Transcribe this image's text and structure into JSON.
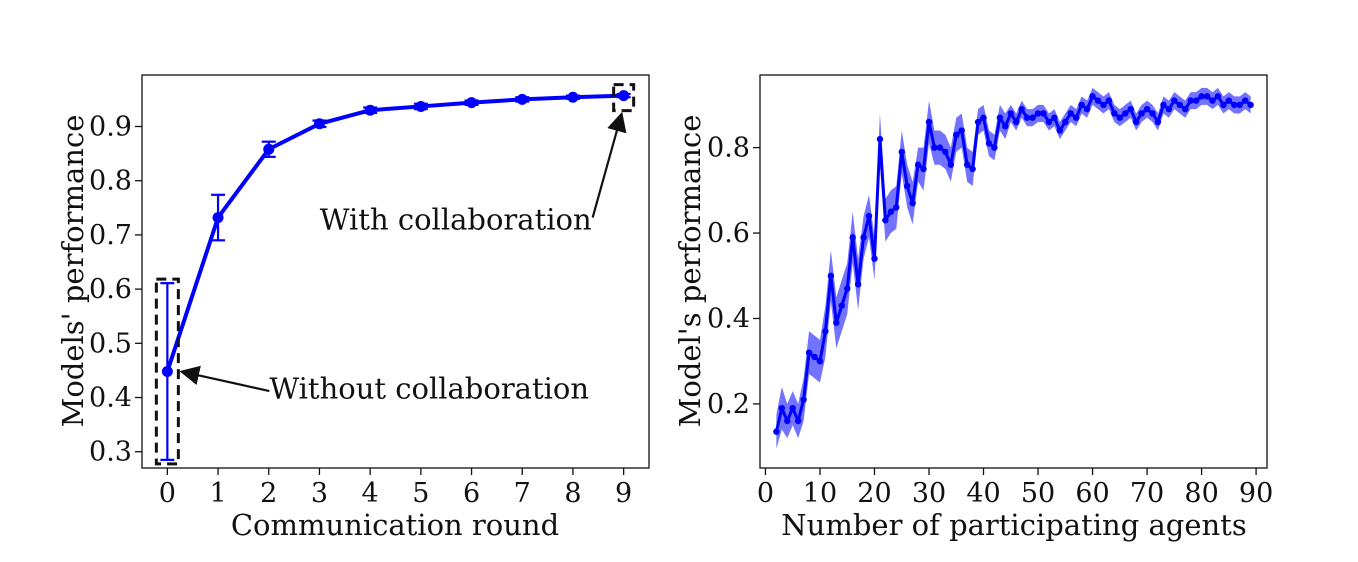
{
  "chart_data": [
    {
      "type": "line",
      "xlabel": "Communication round",
      "ylabel": "Models' performance",
      "xlim": [
        -0.5,
        9.5
      ],
      "ylim": [
        0.27,
        0.995
      ],
      "xticks": [
        0,
        1,
        2,
        3,
        4,
        5,
        6,
        7,
        8,
        9
      ],
      "yticks": [
        0.3,
        0.4,
        0.5,
        0.6,
        0.7,
        0.8,
        0.9
      ],
      "grid": false,
      "color": "#0000ff",
      "series": [
        {
          "x": [
            0,
            1,
            2,
            3,
            4,
            5,
            6,
            7,
            8,
            9
          ],
          "y": [
            0.448,
            0.732,
            0.858,
            0.905,
            0.93,
            0.937,
            0.944,
            0.95,
            0.954,
            0.957
          ],
          "err": [
            0.163,
            0.042,
            0.014,
            0.006,
            0.005,
            0.005,
            0.004,
            0.004,
            0.003,
            0.003
          ]
        }
      ],
      "annotations": [
        {
          "text": "Without collaboration",
          "target_x": 0,
          "target_y": 0.448
        },
        {
          "text": "With collaboration",
          "target_x": 9,
          "target_y": 0.957
        }
      ]
    },
    {
      "type": "line",
      "xlabel": "Number of participating agents",
      "ylabel": "Model's performance",
      "xlim": [
        -1,
        92
      ],
      "ylim": [
        0.05,
        0.97
      ],
      "xticks": [
        0,
        10,
        20,
        30,
        40,
        50,
        60,
        70,
        80,
        90
      ],
      "yticks": [
        0.2,
        0.4,
        0.6,
        0.8
      ],
      "grid": false,
      "color": "#0000ff",
      "series": [
        {
          "x": [
            2,
            3,
            4,
            5,
            6,
            7,
            8,
            9,
            10,
            11,
            12,
            13,
            14,
            15,
            16,
            17,
            18,
            19,
            20,
            21,
            22,
            23,
            24,
            25,
            26,
            27,
            28,
            29,
            30,
            31,
            32,
            33,
            34,
            35,
            36,
            37,
            38,
            39,
            40,
            41,
            42,
            43,
            44,
            45,
            46,
            47,
            48,
            49,
            50,
            51,
            52,
            53,
            54,
            55,
            56,
            57,
            58,
            59,
            60,
            61,
            62,
            63,
            64,
            65,
            66,
            67,
            68,
            69,
            70,
            71,
            72,
            73,
            74,
            75,
            76,
            77,
            78,
            79,
            80,
            81,
            82,
            83,
            84,
            85,
            86,
            87,
            88,
            89
          ],
          "y": [
            0.135,
            0.19,
            0.16,
            0.19,
            0.16,
            0.21,
            0.32,
            0.31,
            0.3,
            0.37,
            0.5,
            0.39,
            0.43,
            0.47,
            0.59,
            0.48,
            0.59,
            0.64,
            0.54,
            0.82,
            0.63,
            0.65,
            0.66,
            0.79,
            0.71,
            0.67,
            0.76,
            0.75,
            0.86,
            0.8,
            0.8,
            0.79,
            0.76,
            0.83,
            0.84,
            0.76,
            0.75,
            0.86,
            0.87,
            0.81,
            0.8,
            0.87,
            0.85,
            0.88,
            0.86,
            0.89,
            0.87,
            0.87,
            0.88,
            0.88,
            0.86,
            0.87,
            0.84,
            0.86,
            0.88,
            0.87,
            0.9,
            0.89,
            0.92,
            0.91,
            0.9,
            0.91,
            0.88,
            0.87,
            0.88,
            0.89,
            0.86,
            0.88,
            0.89,
            0.88,
            0.86,
            0.9,
            0.89,
            0.91,
            0.9,
            0.89,
            0.91,
            0.91,
            0.92,
            0.92,
            0.91,
            0.92,
            0.9,
            0.91,
            0.9,
            0.9,
            0.91,
            0.9
          ],
          "band": [
            0.04,
            0.05,
            0.04,
            0.04,
            0.04,
            0.05,
            0.05,
            0.05,
            0.05,
            0.06,
            0.06,
            0.06,
            0.06,
            0.06,
            0.06,
            0.06,
            0.05,
            0.05,
            0.05,
            0.06,
            0.05,
            0.05,
            0.05,
            0.05,
            0.05,
            0.05,
            0.04,
            0.05,
            0.05,
            0.04,
            0.04,
            0.04,
            0.04,
            0.04,
            0.04,
            0.04,
            0.04,
            0.03,
            0.03,
            0.03,
            0.03,
            0.03,
            0.03,
            0.02,
            0.02,
            0.02,
            0.02,
            0.02,
            0.02,
            0.02,
            0.02,
            0.02,
            0.02,
            0.02,
            0.02,
            0.02,
            0.02,
            0.02,
            0.02,
            0.02,
            0.02,
            0.02,
            0.02,
            0.02,
            0.02,
            0.02,
            0.02,
            0.02,
            0.02,
            0.02,
            0.02,
            0.02,
            0.02,
            0.02,
            0.02,
            0.02,
            0.02,
            0.02,
            0.02,
            0.02,
            0.02,
            0.02,
            0.02,
            0.02,
            0.02,
            0.02,
            0.02,
            0.02
          ]
        }
      ]
    }
  ]
}
